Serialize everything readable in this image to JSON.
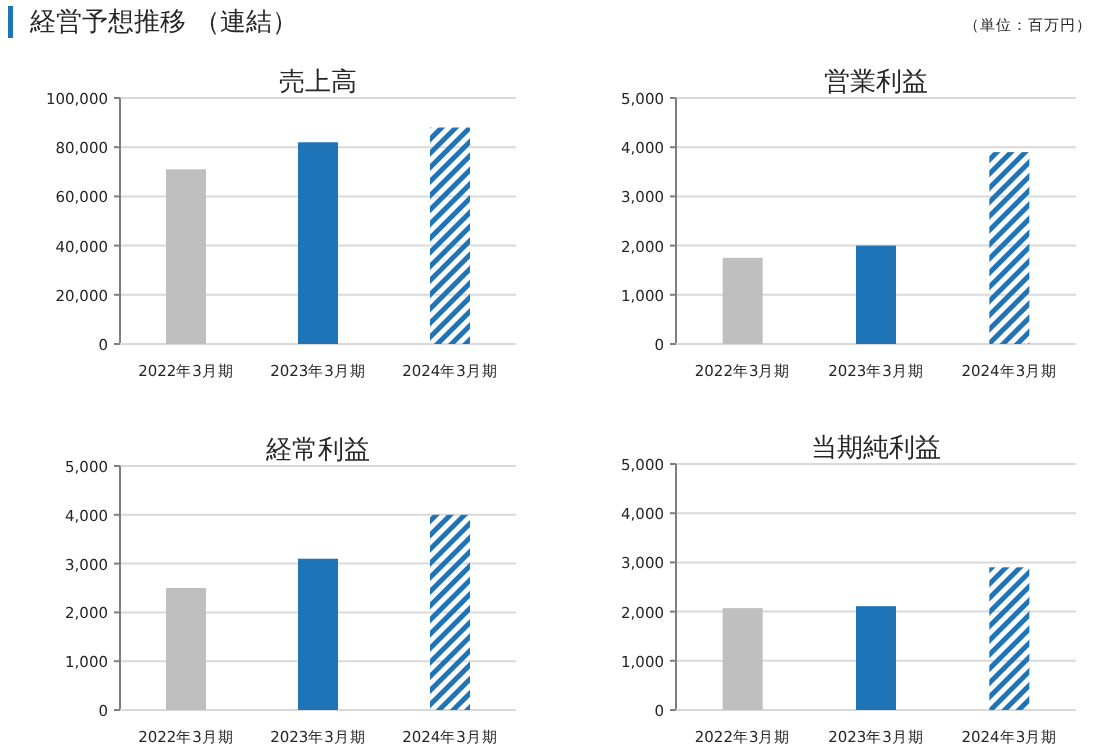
{
  "chart_data": [
    {
      "type": "bar",
      "title": "売上高",
      "categories": [
        "2022年3月期",
        "2023年3月期",
        "2024年3月期"
      ],
      "values": [
        71000,
        82000,
        88000
      ],
      "colors": [
        "#bfbfbf",
        "#1f73b7",
        "#1f73b7"
      ],
      "ylim": [
        0,
        100000
      ],
      "yticks": [
        {
          "value": 0,
          "label": "0"
        },
        {
          "value": 20000,
          "label": "20,000"
        },
        {
          "value": 40000,
          "label": "40,000"
        },
        {
          "value": 60000,
          "label": "60,000"
        },
        {
          "value": 80000,
          "label": "80,000"
        },
        {
          "value": 100000,
          "label": "100,000"
        }
      ],
      "grid": "y",
      "annotations": [
        "経営予想推移 （連結）"
      ]
    },
    {
      "type": "bar",
      "title": "営業利益",
      "categories": [
        "2022年3月期",
        "2023年3月期",
        "2024年3月期"
      ],
      "values": [
        1750,
        2000,
        3900
      ],
      "colors": [
        "#bfbfbf",
        "#1f73b7",
        "#1f73b7"
      ],
      "ylim": [
        0,
        5000
      ],
      "yticks": [
        {
          "value": 0,
          "label": "0"
        },
        {
          "value": 1000,
          "label": "1,000"
        },
        {
          "value": 2000,
          "label": "2,000"
        },
        {
          "value": 3000,
          "label": "3,000"
        },
        {
          "value": 4000,
          "label": "4,000"
        },
        {
          "value": 5000,
          "label": "5,000"
        }
      ],
      "grid": "y",
      "annotations": [
        "（単位：百万円）"
      ]
    },
    {
      "type": "bar",
      "title": "経常利益",
      "categories": [
        "2022年3月期",
        "2023年3月期",
        "2024年3月期"
      ],
      "values": [
        2500,
        3100,
        4000
      ],
      "colors": [
        "#bfbfbf",
        "#1f73b7",
        "#1f73b7"
      ],
      "ylim": [
        0,
        5000
      ],
      "yticks": [
        {
          "value": 0,
          "label": "0"
        },
        {
          "value": 1000,
          "label": "1,000"
        },
        {
          "value": 2000,
          "label": "2,000"
        },
        {
          "value": 3000,
          "label": "3,000"
        },
        {
          "value": 4000,
          "label": "4,000"
        },
        {
          "value": 5000,
          "label": "5,000"
        }
      ],
      "grid": "y"
    },
    {
      "type": "bar",
      "title": "当期純利益",
      "categories": [
        "2022年3月期",
        "2023年3月期",
        "2024年3月期"
      ],
      "values": [
        2070,
        2110,
        2900
      ],
      "colors": [
        "#bfbfbf",
        "#1f73b7",
        "#1f73b7"
      ],
      "ylim": [
        0,
        5000
      ],
      "yticks": [
        {
          "value": 0,
          "label": "0"
        },
        {
          "value": 1000,
          "label": "1,000"
        },
        {
          "value": 2000,
          "label": "2,000"
        },
        {
          "value": 3000,
          "label": "3,000"
        },
        {
          "value": 4000,
          "label": "4,000"
        },
        {
          "value": 5000,
          "label": "5,000"
        }
      ],
      "grid": "y"
    }
  ]
}
